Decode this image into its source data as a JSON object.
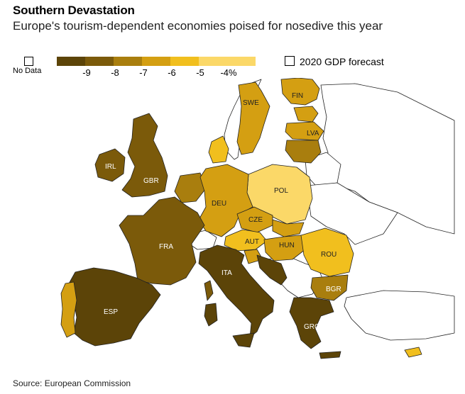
{
  "title": "Southern Devastation",
  "subtitle": "Europe's tourism-dependent economies poised for nosedive this year",
  "legend": {
    "no_data_label": "No Data",
    "forecast_label": "2020 GDP forecast",
    "scale": [
      {
        "label": "-9",
        "color": "#5c4408"
      },
      {
        "label": "-8",
        "color": "#7b5a0a"
      },
      {
        "label": "-7",
        "color": "#a97e0e"
      },
      {
        "label": "-6",
        "color": "#d49f12"
      },
      {
        "label": "-5",
        "color": "#f1bf1e"
      },
      {
        "label": "-4%",
        "color": "#fbd868"
      }
    ]
  },
  "countries": {
    "FIN": "FIN",
    "SWE": "SWE",
    "LVA": "LVA",
    "IRL": "IRL",
    "GBR": "GBR",
    "POL": "POL",
    "DEU": "DEU",
    "CZE": "CZE",
    "FRA": "FRA",
    "AUT": "AUT",
    "HUN": "HUN",
    "ROU": "ROU",
    "ITA": "ITA",
    "BGR": "BGR",
    "ESP": "ESP",
    "GRC": "GRC"
  },
  "source": "Source: European Commission"
}
